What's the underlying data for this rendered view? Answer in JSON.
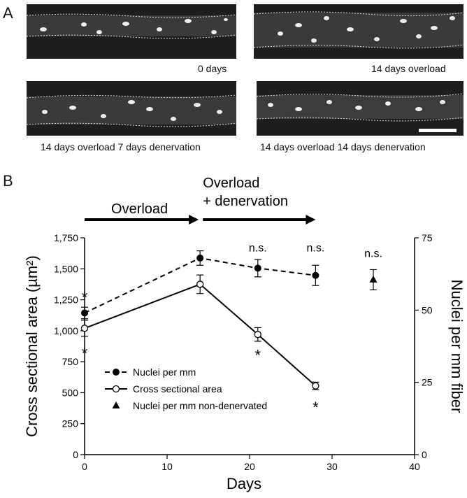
{
  "panel_a": {
    "letter": "A",
    "images": [
      {
        "caption": "0 days"
      },
      {
        "caption": "14 days overload"
      },
      {
        "caption": "14 days overload 7 days denervation"
      },
      {
        "caption": "14 days overload 14 days denervation"
      }
    ]
  },
  "panel_b": {
    "letter": "B"
  },
  "chart_data": {
    "type": "line",
    "xlabel": "Days",
    "ylabel_left": "Cross sectional area (µm²)",
    "ylabel_right": "Nuclei per mm fiber",
    "xlim": [
      0,
      40
    ],
    "ylim_left": [
      0,
      1750
    ],
    "ylim_right": [
      0,
      75
    ],
    "x_ticks": [
      "0",
      "10",
      "20",
      "30",
      "40"
    ],
    "y_ticks_left": [
      "0",
      "250",
      "500",
      "750",
      "1,000",
      "1,250",
      "1,500",
      "1,750"
    ],
    "y_ticks_right": [
      "0",
      "25",
      "50",
      "75"
    ],
    "grid": false,
    "legend_position": "lower-left",
    "phases": [
      {
        "label": "Overload",
        "start": 0,
        "end": 14
      },
      {
        "label_line1": "Overload",
        "label_line2": "+ denervation",
        "start": 14,
        "end": 28
      }
    ],
    "series": [
      {
        "name": "Nuclei per mm",
        "axis": "right",
        "style": "dashed",
        "marker": "filled-circle",
        "x": [
          0,
          14,
          21,
          28
        ],
        "y": [
          49,
          68,
          64.5,
          62
        ],
        "err": [
          2,
          2.5,
          3,
          3.5
        ]
      },
      {
        "name": "Cross sectional area",
        "axis": "left",
        "style": "solid",
        "marker": "open-circle",
        "x": [
          0,
          14,
          21,
          28
        ],
        "y": [
          1020,
          1375,
          970,
          555
        ],
        "err": [
          65,
          75,
          55,
          30
        ]
      },
      {
        "name": "Nuclei per mm non-denervated",
        "axis": "right",
        "style": "none",
        "marker": "filled-triangle",
        "x": [
          35
        ],
        "y": [
          60.5
        ],
        "err": [
          3.5
        ]
      }
    ],
    "annotations": [
      {
        "text": "*",
        "x": 0,
        "y_right": 54.5
      },
      {
        "text": "*",
        "x": 0,
        "y_left": 820
      },
      {
        "text": "n.s.",
        "x": 21,
        "y_right": 71.5
      },
      {
        "text": "n.s.",
        "x": 28,
        "y_right": 71.5
      },
      {
        "text": "n.s.",
        "x": 35,
        "y_right": 69.5
      },
      {
        "text": "*",
        "x": 21,
        "y_left": 805
      },
      {
        "text": "*",
        "x": 28,
        "y_left": 385
      }
    ]
  }
}
